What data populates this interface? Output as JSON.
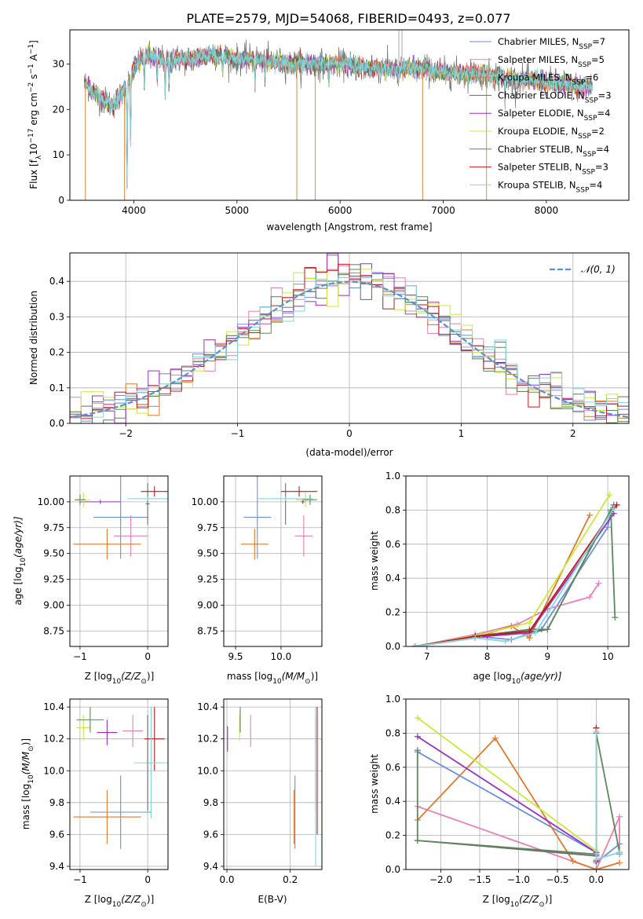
{
  "figure_title": "PLATE=2579, MJD=54068, FIBERID=0493, z=0.077",
  "series": [
    {
      "name": "Chabrier MILES",
      "nssp": "7",
      "color": "#6b8fe0"
    },
    {
      "name": "Salpeter MILES",
      "nssp": "5",
      "color": "#e87fb8"
    },
    {
      "name": "Kroupa MILES",
      "nssp": "6",
      "color": "#e07a2a"
    },
    {
      "name": "Chabrier ELODIE",
      "nssp": "3",
      "color": "#6b6b6b"
    },
    {
      "name": "Salpeter ELODIE",
      "nssp": "4",
      "color": "#9b30c0"
    },
    {
      "name": "Kroupa ELODIE",
      "nssp": "2",
      "color": "#cde83a"
    },
    {
      "name": "Chabrier STELIB",
      "nssp": "4",
      "color": "#5a8a5a"
    },
    {
      "name": "Salpeter STELIB",
      "nssp": "3",
      "color": "#c01818"
    },
    {
      "name": "Kroupa STELIB",
      "nssp": "4",
      "color": "#7fd8e0"
    }
  ],
  "chart_data": [
    {
      "type": "line",
      "id": "spectrum",
      "xlabel": "wavelength [Angstrom, rest frame]",
      "ylabel_pre": "Flux [f",
      "ylabel_sub": "λ",
      "ylabel_post": "10",
      "ylabel_exp": "−17",
      "ylabel_post2": " erg cm",
      "ylabel_exp2": "−2",
      "ylabel_post3": " s",
      "ylabel_exp3": "−1",
      "ylabel_post4": " A",
      "ylabel_exp4": "−1",
      "ylabel_end": "]",
      "xlim": [
        3380,
        8800
      ],
      "ylim": [
        0,
        37.5
      ],
      "xticks": [
        4000,
        5000,
        6000,
        7000,
        8000
      ],
      "yticks": [
        0,
        10,
        20,
        30
      ],
      "legend_sub": "SSP",
      "legend_placement": "upper-right",
      "continuum": {
        "x": [
          3520,
          3600,
          3700,
          3800,
          3900,
          4000,
          4100,
          4300,
          4500,
          4800,
          5000,
          5200,
          5500,
          5800,
          6000,
          6300,
          6500,
          6800,
          7000,
          7300,
          7600,
          8000,
          8300,
          8450
        ],
        "y": [
          26,
          24,
          22,
          21,
          24,
          29,
          32,
          31,
          31,
          32,
          31,
          31,
          30,
          30,
          30,
          29,
          29,
          29,
          28,
          28,
          27,
          26,
          25,
          25
        ]
      },
      "absorption_lines": [
        {
          "x": 3934,
          "depth": 25
        },
        {
          "x": 3968,
          "depth": 14
        },
        {
          "x": 4102,
          "depth": 8
        },
        {
          "x": 4227,
          "depth": 5
        },
        {
          "x": 4304,
          "depth": 7
        },
        {
          "x": 4341,
          "depth": 6
        },
        {
          "x": 4861,
          "depth": 4
        },
        {
          "x": 5175,
          "depth": 5
        },
        {
          "x": 5270,
          "depth": 3
        },
        {
          "x": 5892,
          "depth": 4
        },
        {
          "x": 6563,
          "depth": 3
        },
        {
          "x": 7600,
          "depth": 6
        }
      ],
      "data_glitches": [
        {
          "x": 3530,
          "lo": 0
        },
        {
          "x": 3910,
          "lo": 0
        },
        {
          "x": 5580,
          "lo": 0
        },
        {
          "x": 5760,
          "lo": 0
        },
        {
          "x": 6800,
          "lo": 0
        },
        {
          "x": 7420,
          "lo": 0
        }
      ],
      "emission": [
        {
          "x": 6570,
          "peak": 37.5
        },
        {
          "x": 6600,
          "peak": 37.5
        }
      ]
    },
    {
      "type": "step",
      "id": "residuals",
      "xlabel": "(data-model)/error",
      "ylabel": "Normed distribution",
      "xlim": [
        -2.5,
        2.5
      ],
      "ylim": [
        0,
        0.48
      ],
      "xticks": [
        -2,
        -1,
        0,
        1,
        2
      ],
      "yticks": [
        0.0,
        0.1,
        0.2,
        0.3,
        0.4
      ],
      "grid": true,
      "legend": "𝒩(0, 1)",
      "legend_placement": "upper-right",
      "bin_width": 0.1,
      "normal_mean": 0,
      "normal_sigma": 1
    },
    {
      "type": "errorbar",
      "id": "age-vs-Z",
      "xlabel_pre": "Z [log",
      "xlabel_sub": "10",
      "xlabel_post": "(Z/Z",
      "xlabel_sub2": "⊙",
      "xlabel_end": ")]",
      "ylabel_pre": "age  [log",
      "ylabel_sub": "10",
      "ylabel_post": "(age/yr)]",
      "xlim": [
        -1.15,
        0.3
      ],
      "ylim": [
        8.6,
        10.25
      ],
      "xticks": [
        -1,
        0
      ],
      "yticks": [
        8.75,
        9.0,
        9.25,
        9.5,
        9.75,
        10.0
      ],
      "grid": true,
      "points": [
        {
          "series": 0,
          "x": -0.4,
          "xerr": 0.4,
          "y": 9.85,
          "yerr": 0.4
        },
        {
          "series": 1,
          "x": -0.25,
          "xerr": 0.25,
          "y": 9.67,
          "yerr": 0.2
        },
        {
          "series": 2,
          "x": -0.6,
          "xerr": 0.5,
          "y": 9.59,
          "yerr": 0.15
        },
        {
          "series": 3,
          "x": 0.0,
          "xerr": 0.03,
          "y": 9.98,
          "yerr": 0.2
        },
        {
          "series": 4,
          "x": -0.7,
          "xerr": 0.3,
          "y": 10.0,
          "yerr": 0.02
        },
        {
          "series": 5,
          "x": -0.95,
          "xerr": 0.1,
          "y": 10.02,
          "yerr": 0.07
        },
        {
          "series": 6,
          "x": -1.0,
          "xerr": 0.08,
          "y": 10.02,
          "yerr": 0.05
        },
        {
          "series": 7,
          "x": 0.1,
          "xerr": 0.2,
          "y": 10.1,
          "yerr": 0.05
        },
        {
          "series": 8,
          "x": 0.0,
          "xerr": 0.3,
          "y": 10.03,
          "yerr": 0.02
        }
      ]
    },
    {
      "type": "errorbar",
      "id": "age-vs-mass",
      "xlabel_pre": "mass [log",
      "xlabel_sub": "10",
      "xlabel_post": "(M/M",
      "xlabel_sub2": "⊙",
      "xlabel_end": ")]",
      "xlim": [
        9.37,
        10.45
      ],
      "ylim": [
        8.6,
        10.25
      ],
      "xticks": [
        9.5,
        10.0
      ],
      "yticks": [
        8.75,
        9.0,
        9.25,
        9.5,
        9.75,
        10.0
      ],
      "grid": true,
      "points": [
        {
          "series": 0,
          "x": 9.74,
          "xerr": 0.15,
          "y": 9.85,
          "yerr": 0.4
        },
        {
          "series": 1,
          "x": 10.25,
          "xerr": 0.1,
          "y": 9.67,
          "yerr": 0.2
        },
        {
          "series": 2,
          "x": 9.71,
          "xerr": 0.15,
          "y": 9.59,
          "yerr": 0.15
        },
        {
          "series": 3,
          "x": 10.05,
          "xerr": 0.0,
          "y": 9.98,
          "yerr": 0.2
        },
        {
          "series": 4,
          "x": 10.24,
          "xerr": 0.02,
          "y": 10.0,
          "yerr": 0.02
        },
        {
          "series": 5,
          "x": 10.27,
          "xerr": 0.1,
          "y": 10.02,
          "yerr": 0.07
        },
        {
          "series": 6,
          "x": 10.32,
          "xerr": 0.08,
          "y": 10.02,
          "yerr": 0.05
        },
        {
          "series": 7,
          "x": 10.2,
          "xerr": 0.2,
          "y": 10.1,
          "yerr": 0.05
        },
        {
          "series": 8,
          "x": 10.05,
          "xerr": 0.3,
          "y": 10.03,
          "yerr": 0.02
        }
      ]
    },
    {
      "type": "line",
      "id": "mass-weight-vs-age",
      "xlabel_pre": "age  [log",
      "xlabel_sub": "10",
      "xlabel_post": "(age/yr)]",
      "ylabel": "mass weight",
      "xlim": [
        6.65,
        10.35
      ],
      "ylim": [
        0,
        1
      ],
      "xticks": [
        7,
        8,
        9,
        10
      ],
      "yticks": [
        0.0,
        0.2,
        0.4,
        0.6,
        0.8,
        1.0
      ],
      "grid": true,
      "lines": [
        {
          "series": 0,
          "x": [
            6.8,
            7.8,
            8.4,
            8.9,
            10.0,
            10.05
          ],
          "y": [
            0.0,
            0.06,
            0.04,
            0.1,
            0.7,
            0.79
          ]
        },
        {
          "series": 1,
          "x": [
            6.8,
            7.8,
            8.5,
            9.0,
            9.7,
            9.85
          ],
          "y": [
            0.0,
            0.07,
            0.13,
            0.22,
            0.29,
            0.37
          ]
        },
        {
          "series": 2,
          "x": [
            6.8,
            7.8,
            8.4,
            8.7,
            9.7
          ],
          "y": [
            0.0,
            0.05,
            0.12,
            0.05,
            0.77
          ]
        },
        {
          "series": 3,
          "x": [
            6.8,
            7.8,
            8.7,
            9.0,
            10.1
          ],
          "y": [
            0.0,
            0.06,
            0.08,
            0.1,
            0.83
          ]
        },
        {
          "series": 4,
          "x": [
            6.8,
            8.0,
            8.7,
            10.1
          ],
          "y": [
            0.0,
            0.06,
            0.08,
            0.78
          ]
        },
        {
          "series": 5,
          "x": [
            6.8,
            7.9,
            8.7,
            10.03
          ],
          "y": [
            0.0,
            0.07,
            0.14,
            0.89
          ]
        },
        {
          "series": 6,
          "x": [
            6.8,
            7.8,
            8.7,
            9.0,
            10.05,
            10.12
          ],
          "y": [
            0.0,
            0.06,
            0.1,
            0.1,
            0.8,
            0.17
          ]
        },
        {
          "series": 7,
          "x": [
            6.8,
            7.8,
            8.7,
            10.15
          ],
          "y": [
            0.0,
            0.06,
            0.09,
            0.83
          ]
        },
        {
          "series": 8,
          "x": [
            6.8,
            7.8,
            8.3,
            8.8,
            10.1
          ],
          "y": [
            0.0,
            0.05,
            0.03,
            0.08,
            0.81
          ]
        }
      ]
    },
    {
      "type": "errorbar",
      "id": "mass-vs-Z",
      "xlabel_pre": "Z [log",
      "xlabel_sub": "10",
      "xlabel_post": "(Z/Z",
      "xlabel_sub2": "⊙",
      "xlabel_end": ")]",
      "ylabel_pre": "mass [log",
      "ylabel_sub": "10",
      "ylabel_post": "(M/M",
      "ylabel_sub2": "⊙",
      "ylabel_end": ")]",
      "xlim": [
        -1.15,
        0.3
      ],
      "ylim": [
        9.38,
        10.45
      ],
      "xticks": [
        -1,
        0
      ],
      "yticks": [
        9.4,
        9.6,
        9.8,
        10.0,
        10.2,
        10.4
      ],
      "grid": true,
      "points": [
        {
          "series": 0,
          "x": -0.4,
          "xerr": 0.45,
          "y": 9.74,
          "yerr": 0.23
        },
        {
          "series": 1,
          "x": -0.22,
          "xerr": 0.15,
          "y": 10.25,
          "yerr": 0.1
        },
        {
          "series": 2,
          "x": -0.6,
          "xerr": 0.5,
          "y": 9.71,
          "yerr": 0.17
        },
        {
          "series": 3,
          "x": 0.0,
          "xerr": 0.02,
          "y": 10.05,
          "yerr": 0.3
        },
        {
          "series": 4,
          "x": -0.6,
          "xerr": 0.15,
          "y": 10.24,
          "yerr": 0.08
        },
        {
          "series": 5,
          "x": -0.95,
          "xerr": 0.1,
          "y": 10.27,
          "yerr": 0.08
        },
        {
          "series": 6,
          "x": -0.85,
          "xerr": 0.2,
          "y": 10.32,
          "yerr": 0.08
        },
        {
          "series": 7,
          "x": 0.1,
          "xerr": 0.15,
          "y": 10.2,
          "yerr": 0.2
        },
        {
          "series": 8,
          "x": 0.05,
          "xerr": 0.25,
          "y": 10.05,
          "yerr": 0.35
        }
      ]
    },
    {
      "type": "errorbar",
      "id": "mass-vs-ebv",
      "xlabel": "E(B-V)",
      "xlim": [
        -0.01,
        0.3
      ],
      "ylim": [
        9.38,
        10.45
      ],
      "xticks": [
        0.0,
        0.2
      ],
      "yticks": [
        9.4,
        9.6,
        9.8,
        10.0,
        10.2,
        10.4
      ],
      "grid": true,
      "points": [
        {
          "series": 0,
          "x": 0.215,
          "xerr": 0,
          "y": 9.74,
          "yerr": 0.23
        },
        {
          "series": 1,
          "x": 0.075,
          "xerr": 0,
          "y": 10.25,
          "yerr": 0.1
        },
        {
          "series": 2,
          "x": 0.212,
          "xerr": 0,
          "y": 9.71,
          "yerr": 0.17
        },
        {
          "series": 3,
          "x": 0.28,
          "xerr": 0,
          "y": 10.05,
          "yerr": 0.3
        },
        {
          "series": 4,
          "x": 0.002,
          "xerr": 0,
          "y": 10.2,
          "yerr": 0.08
        },
        {
          "series": 5,
          "x": 0.04,
          "xerr": 0,
          "y": 10.27,
          "yerr": 0.08
        },
        {
          "series": 6,
          "x": 0.042,
          "xerr": 0,
          "y": 10.32,
          "yerr": 0.08
        },
        {
          "series": 7,
          "x": 0.285,
          "xerr": 0,
          "y": 10.0,
          "yerr": 0.4
        },
        {
          "series": 8,
          "x": 0.28,
          "xerr": 0,
          "y": 9.9,
          "yerr": 0.5
        }
      ]
    },
    {
      "type": "line",
      "id": "mass-weight-vs-Z",
      "xlabel_pre": "Z [log",
      "xlabel_sub": "10",
      "xlabel_post": "(Z/Z",
      "xlabel_sub2": "⊙",
      "xlabel_end": ")]",
      "ylabel": "mass weight",
      "xlim": [
        -2.45,
        0.42
      ],
      "ylim": [
        0,
        1
      ],
      "xticks": [
        -2.0,
        -1.5,
        -1.0,
        -0.5,
        0.0
      ],
      "yticks": [
        0.0,
        0.2,
        0.4,
        0.6,
        0.8,
        1.0
      ],
      "grid": true,
      "lines": [
        {
          "series": 0,
          "x": [
            -2.3,
            0.0,
            0.0,
            0.3,
            0.3
          ],
          "y": [
            0.69,
            0.1,
            0.04,
            0.15,
            0.09
          ]
        },
        {
          "series": 1,
          "x": [
            -2.3,
            0.0,
            0.3,
            0.3
          ],
          "y": [
            0.37,
            0.0,
            0.31,
            0.1
          ]
        },
        {
          "series": 2,
          "x": [
            -2.3,
            -1.3,
            -0.3,
            0.0,
            0.3
          ],
          "y": [
            0.29,
            0.77,
            0.05,
            0.0,
            0.04
          ]
        },
        {
          "series": 3,
          "x": [
            -2.3,
            0.0,
            0.0
          ],
          "y": [
            0.17,
            0.08,
            0.83
          ]
        },
        {
          "series": 4,
          "x": [
            -2.3,
            0.0,
            0.0
          ],
          "y": [
            0.78,
            0.1,
            0.08
          ]
        },
        {
          "series": 5,
          "x": [
            -2.3,
            0.0
          ],
          "y": [
            0.89,
            0.11
          ]
        },
        {
          "series": 6,
          "x": [
            -2.3,
            -2.3,
            0.0,
            0.0,
            0.3
          ],
          "y": [
            0.7,
            0.17,
            0.09,
            0.8,
            0.1
          ]
        },
        {
          "series": 7,
          "x": [
            0.0,
            0.0
          ],
          "y": [
            0.83,
            0.05
          ]
        },
        {
          "series": 8,
          "x": [
            0.0,
            0.0,
            0.3
          ],
          "y": [
            0.81,
            0.06,
            0.1
          ]
        }
      ]
    }
  ]
}
